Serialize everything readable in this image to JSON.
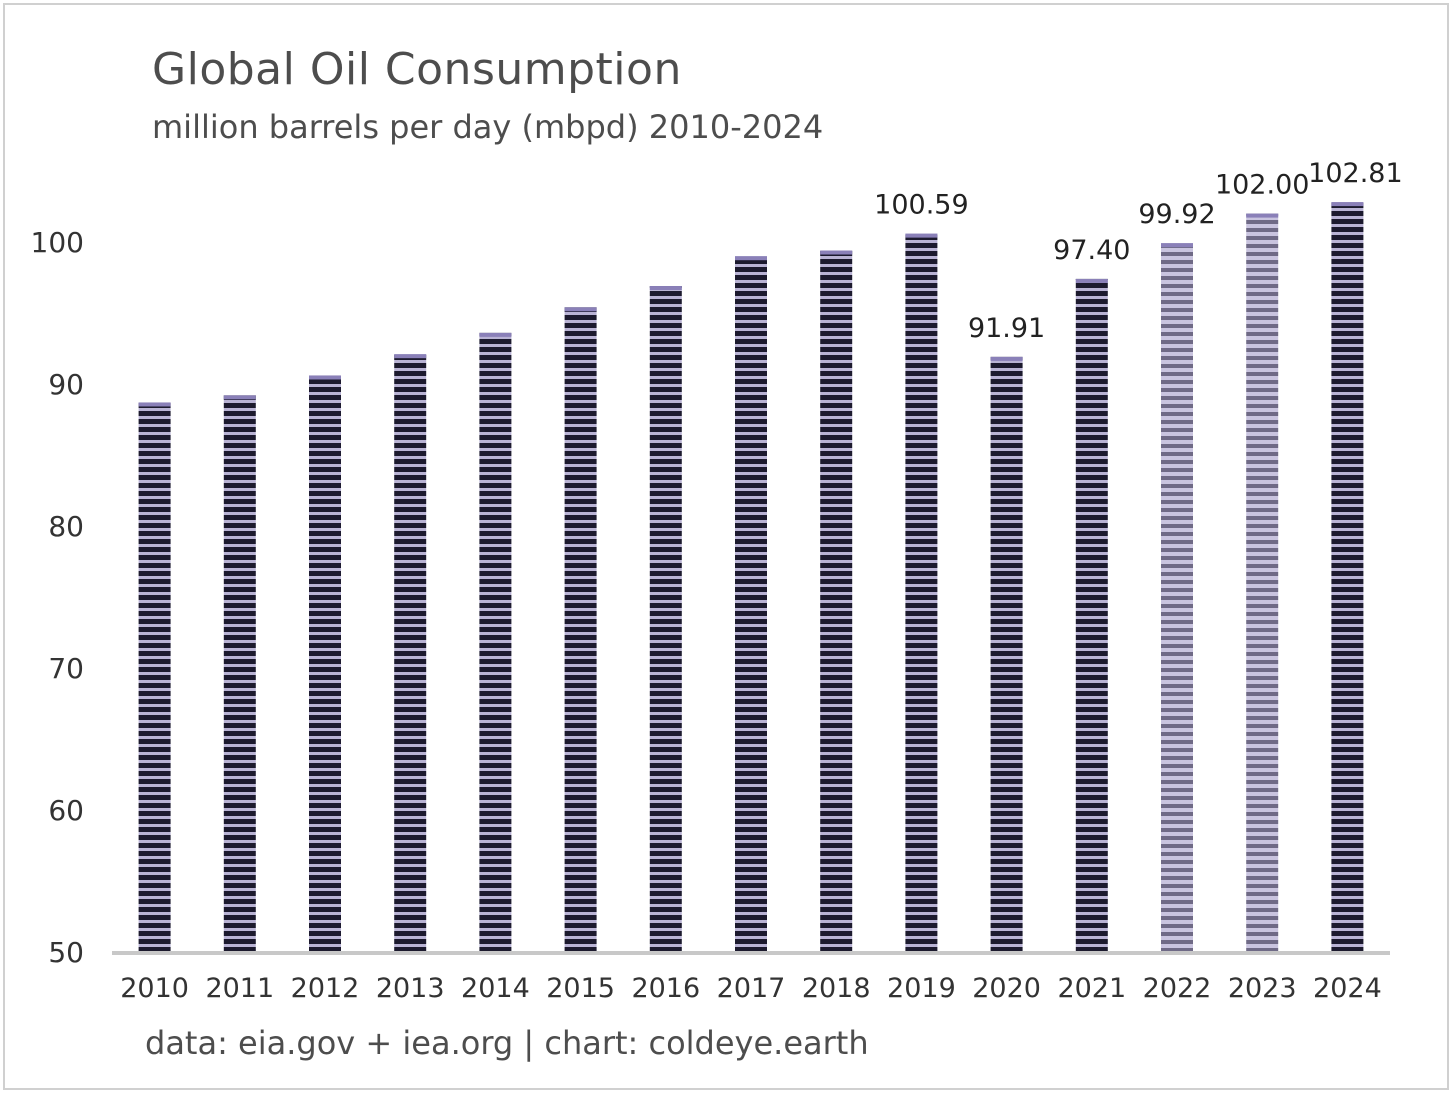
{
  "chart_data": {
    "type": "bar",
    "title": "Global Oil Consumption",
    "subtitle": "million barrels per day (mbpd) 2010-2024",
    "source": "data: eia.gov + iea.org | chart: coldeye.earth",
    "xlabel": "",
    "ylabel": "",
    "ylim": [
      50,
      103
    ],
    "yticks": [
      50,
      60,
      70,
      80,
      90,
      100
    ],
    "grid": false,
    "categories": [
      "2010",
      "2011",
      "2012",
      "2013",
      "2014",
      "2015",
      "2016",
      "2017",
      "2018",
      "2019",
      "2020",
      "2021",
      "2022",
      "2023",
      "2024"
    ],
    "values": [
      88.7,
      89.2,
      90.6,
      92.1,
      93.6,
      95.4,
      96.9,
      99.0,
      99.4,
      100.59,
      91.91,
      97.4,
      99.92,
      102.0,
      102.81
    ],
    "data_labels": [
      "",
      "",
      "",
      "",
      "",
      "",
      "",
      "",
      "",
      "100.59",
      "91.91",
      "97.40",
      "99.92",
      "102.00",
      "102.81"
    ],
    "colors": {
      "bar_dark": "#1c1a2e",
      "bar_light": "#b9b3d4",
      "bar_cap": "#8a80b8",
      "bar_light_variant_dark": "#6f6a86",
      "axis": "#c8c8c8",
      "text": "#4d4d4d"
    },
    "light_bars": [
      "2022",
      "2023"
    ]
  }
}
